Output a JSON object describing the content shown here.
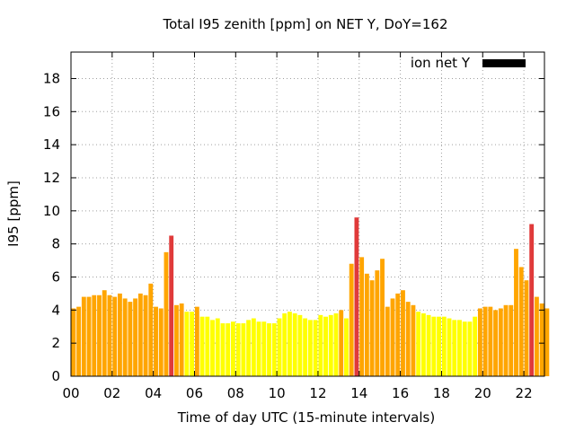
{
  "chart_data": {
    "type": "bar",
    "title": "Total I95 zenith [ppm] on NET Y, DoY=162",
    "xlabel": "Time of day UTC (15-minute intervals)",
    "ylabel": "I95 [ppm]",
    "xlim": [
      0,
      23
    ],
    "ylim": [
      0,
      19.6
    ],
    "x_ticks": [
      {
        "value": 0,
        "label": "00"
      },
      {
        "value": 2,
        "label": "02"
      },
      {
        "value": 4,
        "label": "04"
      },
      {
        "value": 6,
        "label": "06"
      },
      {
        "value": 8,
        "label": "08"
      },
      {
        "value": 10,
        "label": "10"
      },
      {
        "value": 12,
        "label": "12"
      },
      {
        "value": 14,
        "label": "14"
      },
      {
        "value": 16,
        "label": "16"
      },
      {
        "value": 18,
        "label": "18"
      },
      {
        "value": 20,
        "label": "20"
      },
      {
        "value": 22,
        "label": "22"
      }
    ],
    "y_ticks": [
      {
        "value": 0,
        "label": "0"
      },
      {
        "value": 2,
        "label": "2"
      },
      {
        "value": 4,
        "label": "4"
      },
      {
        "value": 6,
        "label": "6"
      },
      {
        "value": 8,
        "label": "8"
      },
      {
        "value": 10,
        "label": "10"
      },
      {
        "value": 12,
        "label": "12"
      },
      {
        "value": 14,
        "label": "14"
      },
      {
        "value": 16,
        "label": "16"
      },
      {
        "value": 18,
        "label": "18"
      }
    ],
    "grid": true,
    "legend": {
      "label": "ion net Y",
      "position": "top-right",
      "swatch_color": "#000000"
    },
    "colors": {
      "low": "#ffff00",
      "medium": "#ffa500",
      "high": "#e03a3a"
    },
    "bar_interval_hours": 0.25,
    "values": [
      4.1,
      4.2,
      4.8,
      4.8,
      4.9,
      4.9,
      5.2,
      4.9,
      4.8,
      5.0,
      4.7,
      4.5,
      4.7,
      5.0,
      4.9,
      5.6,
      4.2,
      4.1,
      7.5,
      8.5,
      4.3,
      4.4,
      3.9,
      3.9,
      4.2,
      3.6,
      3.6,
      3.4,
      3.5,
      3.2,
      3.2,
      3.3,
      3.2,
      3.2,
      3.4,
      3.5,
      3.3,
      3.3,
      3.2,
      3.2,
      3.5,
      3.8,
      3.9,
      3.8,
      3.7,
      3.5,
      3.4,
      3.4,
      3.7,
      3.6,
      3.7,
      3.8,
      4.0,
      3.5,
      6.8,
      9.6,
      7.2,
      6.2,
      5.8,
      6.4,
      7.1,
      4.2,
      4.7,
      5.0,
      5.2,
      4.5,
      4.3,
      3.9,
      3.8,
      3.7,
      3.6,
      3.6,
      3.6,
      3.5,
      3.4,
      3.4,
      3.3,
      3.3,
      3.6,
      4.1,
      4.2,
      4.2,
      4.0,
      4.1,
      4.3,
      4.3,
      7.7,
      6.6,
      5.8,
      9.2,
      4.8,
      4.4,
      4.1
    ],
    "levels": [
      "medium",
      "medium",
      "medium",
      "medium",
      "medium",
      "medium",
      "medium",
      "medium",
      "medium",
      "medium",
      "medium",
      "medium",
      "medium",
      "medium",
      "medium",
      "medium",
      "medium",
      "medium",
      "medium",
      "high",
      "medium",
      "medium",
      "low",
      "low",
      "medium",
      "low",
      "low",
      "low",
      "low",
      "low",
      "low",
      "low",
      "low",
      "low",
      "low",
      "low",
      "low",
      "low",
      "low",
      "low",
      "low",
      "low",
      "low",
      "low",
      "low",
      "low",
      "low",
      "low",
      "low",
      "low",
      "low",
      "low",
      "medium",
      "low",
      "medium",
      "high",
      "medium",
      "medium",
      "medium",
      "medium",
      "medium",
      "medium",
      "medium",
      "medium",
      "medium",
      "medium",
      "medium",
      "low",
      "low",
      "low",
      "low",
      "low",
      "low",
      "low",
      "low",
      "low",
      "low",
      "low",
      "low",
      "medium",
      "medium",
      "medium",
      "medium",
      "medium",
      "medium",
      "medium",
      "medium",
      "medium",
      "medium",
      "high",
      "medium",
      "medium",
      "medium"
    ]
  }
}
